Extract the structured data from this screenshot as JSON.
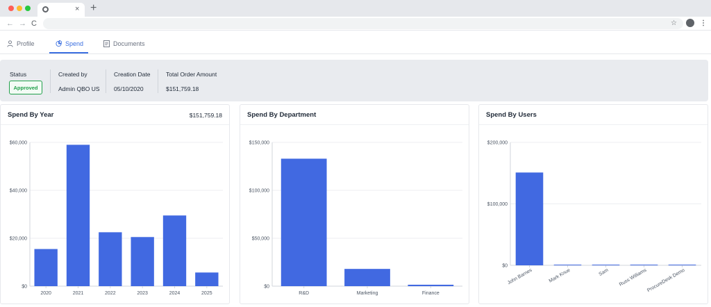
{
  "browser": {
    "close_tab_glyph": "×",
    "new_tab_glyph": "+",
    "back_glyph": "←",
    "forward_glyph": "→",
    "reload_glyph": "C",
    "star_glyph": "☆",
    "menu_glyph": "⋮",
    "traffic_colors": [
      "#ff5f57",
      "#febc2e",
      "#28c840"
    ]
  },
  "tabs": [
    {
      "label": "Profile",
      "icon": "person-icon",
      "active": false
    },
    {
      "label": "Spend",
      "icon": "pie-chart-icon",
      "active": true
    },
    {
      "label": "Documents",
      "icon": "document-icon",
      "active": false
    }
  ],
  "summary": {
    "status_label": "Status",
    "status_value": "Approved",
    "created_by_label": "Created by",
    "created_by_value": "Admin QBO US",
    "creation_date_label": "Creation Date",
    "creation_date_value": "05/10/2020",
    "total_label": "Total Order Amount",
    "total_value": "$151,759.18"
  },
  "colors": {
    "accent": "#3b6fe0",
    "bar": "#4169e1",
    "approved": "#22a04b"
  },
  "cards": [
    {
      "title": "Spend By Year",
      "total": "$151,759.18"
    },
    {
      "title": "Spend By Department",
      "total": ""
    },
    {
      "title": "Spend By Users",
      "total": ""
    }
  ],
  "chart_data": [
    {
      "type": "bar",
      "title": "Spend By Year",
      "categories": [
        "2020",
        "2021",
        "2022",
        "2023",
        "2024",
        "2025"
      ],
      "values": [
        15500,
        59000,
        22500,
        20500,
        29500,
        5700
      ],
      "ylim": [
        0,
        60000
      ],
      "yticks": [
        0,
        20000,
        40000,
        60000
      ],
      "ytick_labels": [
        "$0",
        "$20,000",
        "$40,000",
        "$60,000"
      ],
      "grid": true
    },
    {
      "type": "bar",
      "title": "Spend By Department",
      "categories": [
        "R&D",
        "Marketing",
        "Finance"
      ],
      "values": [
        133000,
        18000,
        1500
      ],
      "ylim": [
        0,
        150000
      ],
      "yticks": [
        0,
        50000,
        100000,
        150000
      ],
      "ytick_labels": [
        "$0",
        "$50,000",
        "$100,000",
        "$150,000"
      ],
      "grid": true
    },
    {
      "type": "bar",
      "title": "Spend By Users",
      "categories": [
        "John Barnes",
        "Mark Knue",
        "Sam",
        "Russ Williams",
        "ProcureDesk Demo"
      ],
      "values": [
        151000,
        400,
        200,
        100,
        50
      ],
      "ylim": [
        0,
        200000
      ],
      "yticks": [
        0,
        100000,
        200000
      ],
      "ytick_labels": [
        "$0",
        "$100,000",
        "$200,000"
      ],
      "rotated_labels": true,
      "grid": true
    }
  ]
}
